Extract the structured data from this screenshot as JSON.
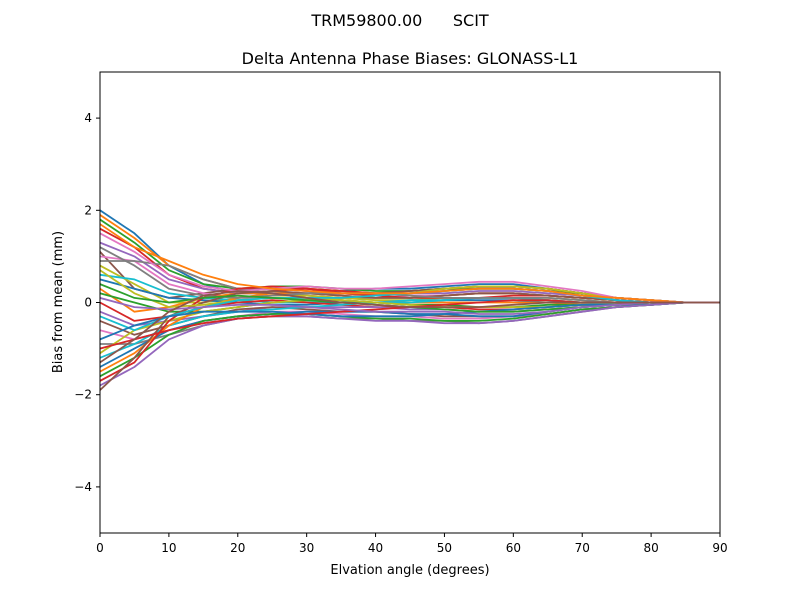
{
  "chart_data": {
    "type": "line",
    "suptitle": "TRM59800.00      SCIT",
    "title": "Delta Antenna Phase Biases: GLONASS-L1",
    "xlabel": "Elvation angle (degrees)",
    "ylabel": "Bias from mean (mm)",
    "xlim": [
      0,
      90
    ],
    "ylim": [
      -5,
      5
    ],
    "xticks": [
      0,
      10,
      20,
      30,
      40,
      50,
      60,
      70,
      80,
      90
    ],
    "yticks": [
      -4,
      -2,
      0,
      2,
      4
    ],
    "ytick_labels": [
      "−4",
      "−2",
      "0",
      "2",
      "4"
    ],
    "grid": false,
    "legend": "none",
    "x": [
      0,
      5,
      10,
      15,
      20,
      25,
      30,
      35,
      40,
      45,
      50,
      55,
      60,
      65,
      70,
      75,
      80,
      85,
      90
    ],
    "colors": [
      "#1f77b4",
      "#ff7f0e",
      "#2ca02c",
      "#d62728",
      "#9467bd",
      "#8c564b",
      "#e377c2",
      "#7f7f7f",
      "#bcbd22",
      "#17becf"
    ],
    "series": [
      {
        "values": [
          2.0,
          1.5,
          0.8,
          0.4,
          0.2,
          0.2,
          0.2,
          0.25,
          0.3,
          0.3,
          0.35,
          0.4,
          0.4,
          0.3,
          0.2,
          0.1,
          0.05,
          0.0,
          0.0
        ]
      },
      {
        "values": [
          1.9,
          1.4,
          0.8,
          0.5,
          0.3,
          0.3,
          0.3,
          0.25,
          0.2,
          0.25,
          0.3,
          0.35,
          0.35,
          0.3,
          0.2,
          0.1,
          0.05,
          0.0,
          0.0
        ]
      },
      {
        "values": [
          1.8,
          1.3,
          0.7,
          0.4,
          0.3,
          0.35,
          0.35,
          0.3,
          0.25,
          0.25,
          0.3,
          0.3,
          0.3,
          0.25,
          0.2,
          0.1,
          0.05,
          0.0,
          0.0
        ]
      },
      {
        "values": [
          1.6,
          1.2,
          0.6,
          0.3,
          0.2,
          0.25,
          0.3,
          0.25,
          0.2,
          0.2,
          0.25,
          0.3,
          0.3,
          0.25,
          0.15,
          0.1,
          0.05,
          0.0,
          0.0
        ]
      },
      {
        "values": [
          1.3,
          1.0,
          0.5,
          0.3,
          0.2,
          0.2,
          0.2,
          0.2,
          0.15,
          0.2,
          0.2,
          0.25,
          0.25,
          0.2,
          0.15,
          0.05,
          0.0,
          0.0,
          0.0
        ]
      },
      {
        "values": [
          1.1,
          0.3,
          0.1,
          0.2,
          0.3,
          0.3,
          0.25,
          0.2,
          0.2,
          0.25,
          0.3,
          0.35,
          0.35,
          0.3,
          0.2,
          0.1,
          0.05,
          0.0,
          0.0
        ]
      },
      {
        "values": [
          1.0,
          0.9,
          0.4,
          0.2,
          0.1,
          0.1,
          0.1,
          0.1,
          0.1,
          0.15,
          0.15,
          0.2,
          0.2,
          0.15,
          0.1,
          0.05,
          0.0,
          0.0,
          0.0
        ]
      },
      {
        "values": [
          0.9,
          0.9,
          0.8,
          0.5,
          0.3,
          0.2,
          0.15,
          0.1,
          0.1,
          0.1,
          0.15,
          0.2,
          0.2,
          0.15,
          0.1,
          0.05,
          0.0,
          0.0,
          0.0
        ]
      },
      {
        "values": [
          0.8,
          0.4,
          0.0,
          0.0,
          0.1,
          0.15,
          0.15,
          0.1,
          0.05,
          0.05,
          0.1,
          0.1,
          0.1,
          0.1,
          0.05,
          0.0,
          0.0,
          0.0,
          0.0
        ]
      },
      {
        "values": [
          0.6,
          0.5,
          0.2,
          0.1,
          0.05,
          0.0,
          0.0,
          0.0,
          0.0,
          0.05,
          0.05,
          0.1,
          0.1,
          0.05,
          0.0,
          0.0,
          0.0,
          0.0,
          0.0
        ]
      },
      {
        "values": [
          0.5,
          0.3,
          0.1,
          0.05,
          0.0,
          -0.05,
          -0.05,
          0.0,
          0.0,
          0.0,
          0.05,
          0.05,
          0.05,
          0.0,
          0.0,
          0.0,
          0.0,
          0.0,
          0.0
        ]
      },
      {
        "values": [
          0.3,
          -0.2,
          -0.1,
          0.1,
          0.2,
          0.2,
          0.1,
          0.05,
          0.0,
          0.0,
          0.0,
          0.0,
          0.0,
          0.0,
          -0.05,
          -0.05,
          0.0,
          0.0,
          0.0
        ]
      },
      {
        "values": [
          0.2,
          0.0,
          -0.2,
          -0.2,
          -0.1,
          0.0,
          0.05,
          0.05,
          0.0,
          -0.05,
          -0.05,
          -0.1,
          -0.1,
          -0.05,
          -0.05,
          -0.05,
          0.0,
          0.0,
          0.0
        ]
      },
      {
        "values": [
          0.0,
          -0.4,
          -0.3,
          -0.1,
          0.0,
          0.05,
          0.0,
          -0.05,
          -0.1,
          -0.1,
          -0.1,
          -0.15,
          -0.15,
          -0.1,
          -0.05,
          -0.05,
          0.0,
          0.0,
          0.0
        ]
      },
      {
        "values": [
          -0.2,
          -0.5,
          -0.4,
          -0.3,
          -0.2,
          -0.1,
          -0.1,
          -0.1,
          -0.1,
          -0.15,
          -0.15,
          -0.2,
          -0.2,
          -0.15,
          -0.1,
          -0.05,
          -0.05,
          0.0,
          0.0
        ]
      },
      {
        "values": [
          -0.4,
          -0.7,
          -0.5,
          -0.3,
          -0.15,
          -0.1,
          -0.15,
          -0.2,
          -0.2,
          -0.25,
          -0.3,
          -0.3,
          -0.3,
          -0.25,
          -0.15,
          -0.1,
          -0.05,
          0.0,
          0.0
        ]
      },
      {
        "values": [
          -0.6,
          -0.8,
          -0.6,
          -0.4,
          -0.3,
          -0.2,
          -0.2,
          -0.25,
          -0.3,
          -0.3,
          -0.35,
          -0.35,
          -0.3,
          -0.25,
          -0.15,
          -0.1,
          -0.05,
          0.0,
          0.0
        ]
      },
      {
        "values": [
          -0.9,
          -0.9,
          -0.7,
          -0.5,
          -0.35,
          -0.3,
          -0.3,
          -0.35,
          -0.35,
          -0.4,
          -0.4,
          -0.45,
          -0.4,
          -0.3,
          -0.2,
          -0.1,
          -0.05,
          0.0,
          0.0
        ]
      },
      {
        "values": [
          -1.1,
          -0.6,
          -0.4,
          -0.2,
          -0.1,
          0.0,
          0.05,
          0.1,
          0.15,
          0.2,
          0.3,
          0.35,
          0.35,
          0.3,
          0.2,
          0.1,
          0.05,
          0.0,
          0.0
        ]
      },
      {
        "values": [
          -1.2,
          -0.9,
          -0.5,
          -0.3,
          -0.2,
          -0.15,
          -0.1,
          -0.05,
          0.0,
          0.0,
          0.05,
          0.1,
          0.1,
          0.05,
          0.0,
          -0.05,
          0.0,
          0.0,
          0.0
        ]
      },
      {
        "values": [
          -1.4,
          -1.0,
          -0.6,
          -0.4,
          -0.3,
          -0.25,
          -0.2,
          -0.2,
          -0.2,
          -0.25,
          -0.25,
          -0.3,
          -0.3,
          -0.2,
          -0.1,
          -0.05,
          -0.05,
          0.0,
          0.0
        ]
      },
      {
        "values": [
          -1.5,
          -1.1,
          -0.5,
          -0.1,
          0.1,
          0.2,
          0.2,
          0.15,
          0.1,
          0.1,
          0.15,
          0.2,
          0.2,
          0.15,
          0.1,
          0.05,
          0.0,
          0.0,
          0.0
        ]
      },
      {
        "values": [
          -1.6,
          -1.2,
          -0.7,
          -0.4,
          -0.3,
          -0.25,
          -0.25,
          -0.3,
          -0.35,
          -0.35,
          -0.4,
          -0.4,
          -0.35,
          -0.25,
          -0.15,
          -0.1,
          -0.05,
          0.0,
          0.0
        ]
      },
      {
        "values": [
          -1.7,
          -1.3,
          -0.4,
          0.1,
          0.3,
          0.35,
          0.3,
          0.2,
          0.15,
          0.1,
          0.1,
          0.1,
          0.15,
          0.15,
          0.1,
          0.05,
          0.0,
          0.0,
          0.0
        ]
      },
      {
        "values": [
          -1.8,
          -1.4,
          -0.8,
          -0.5,
          -0.35,
          -0.3,
          -0.3,
          -0.35,
          -0.4,
          -0.4,
          -0.45,
          -0.45,
          -0.4,
          -0.3,
          -0.2,
          -0.1,
          -0.05,
          0.0,
          0.0
        ]
      },
      {
        "values": [
          -1.9,
          -1.2,
          -0.3,
          0.0,
          0.2,
          0.25,
          0.2,
          0.15,
          0.1,
          0.1,
          0.15,
          0.2,
          0.2,
          0.15,
          0.1,
          0.05,
          0.0,
          0.0,
          0.0
        ]
      },
      {
        "values": [
          1.5,
          1.1,
          0.6,
          0.35,
          0.25,
          0.3,
          0.35,
          0.3,
          0.3,
          0.35,
          0.4,
          0.45,
          0.45,
          0.35,
          0.25,
          0.1,
          0.05,
          0.0,
          0.0
        ]
      },
      {
        "values": [
          1.2,
          0.8,
          0.3,
          0.15,
          0.1,
          0.15,
          0.2,
          0.2,
          0.2,
          0.15,
          0.1,
          0.1,
          0.1,
          0.1,
          0.05,
          0.0,
          0.0,
          0.0,
          0.0
        ]
      },
      {
        "values": [
          0.7,
          0.2,
          -0.1,
          -0.05,
          0.05,
          0.1,
          0.1,
          0.05,
          0.0,
          -0.05,
          -0.1,
          -0.1,
          -0.1,
          -0.1,
          -0.05,
          -0.05,
          0.0,
          0.0,
          0.0
        ]
      },
      {
        "values": [
          -0.3,
          -0.6,
          -0.3,
          -0.1,
          0.05,
          0.1,
          0.1,
          0.1,
          0.15,
          0.2,
          0.25,
          0.3,
          0.3,
          0.25,
          0.15,
          0.05,
          0.0,
          0.0,
          0.0
        ]
      },
      {
        "values": [
          -0.8,
          -0.5,
          -0.3,
          -0.2,
          -0.2,
          -0.2,
          -0.25,
          -0.3,
          -0.3,
          -0.3,
          -0.25,
          -0.2,
          -0.15,
          -0.1,
          -0.05,
          -0.05,
          0.0,
          0.0,
          0.0
        ]
      },
      {
        "values": [
          1.7,
          1.2,
          0.9,
          0.6,
          0.4,
          0.3,
          0.25,
          0.2,
          0.2,
          0.2,
          0.25,
          0.3,
          0.3,
          0.25,
          0.15,
          0.1,
          0.05,
          0.0,
          0.0
        ]
      },
      {
        "values": [
          0.4,
          0.1,
          0.0,
          0.1,
          0.15,
          0.1,
          0.05,
          0.0,
          -0.05,
          -0.1,
          -0.15,
          -0.2,
          -0.2,
          -0.15,
          -0.1,
          -0.05,
          0.0,
          0.0,
          0.0
        ]
      },
      {
        "values": [
          -1.0,
          -0.8,
          -0.6,
          -0.45,
          -0.35,
          -0.3,
          -0.25,
          -0.2,
          -0.15,
          -0.1,
          -0.05,
          0.0,
          0.05,
          0.05,
          0.0,
          0.0,
          0.0,
          0.0,
          0.0
        ]
      },
      {
        "values": [
          0.1,
          -0.1,
          -0.15,
          -0.1,
          -0.05,
          -0.05,
          -0.1,
          -0.15,
          -0.2,
          -0.2,
          -0.2,
          -0.25,
          -0.25,
          -0.2,
          -0.1,
          -0.05,
          0.0,
          0.0,
          0.0
        ]
      },
      {
        "values": [
          -1.3,
          -0.8,
          -0.2,
          0.15,
          0.25,
          0.2,
          0.1,
          0.0,
          -0.05,
          -0.1,
          -0.1,
          -0.1,
          -0.05,
          0.0,
          0.0,
          0.0,
          0.0,
          0.0,
          0.0
        ]
      }
    ]
  }
}
